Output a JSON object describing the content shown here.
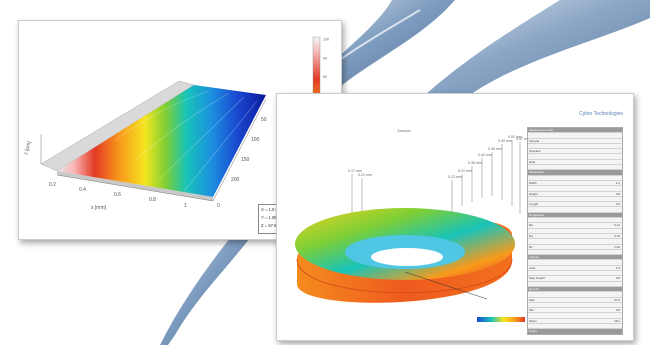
{
  "colors": {
    "swoosh_dark": "#5d7fa6",
    "swoosh_light": "#c7d5e3",
    "window_border": "#c9ccd1",
    "report_logo": "#5a7fb8"
  },
  "plot_window": {
    "colorbar_ticks": [
      "100",
      "90",
      "80",
      "70",
      "60",
      "50",
      "40",
      "30",
      "20",
      "10",
      "0"
    ],
    "x_ticks": [
      "0.2",
      "0.4",
      "0.6",
      "0.8",
      "1",
      "0"
    ],
    "depth_ticks": [
      "200",
      "150",
      "100",
      "50"
    ],
    "z_axis_label": "z [µm]",
    "x_axis_label": "x [mm]",
    "legend": [
      "X = 1.0 mm",
      "Y = 1.08 mm",
      "Z = 57.5 µm"
    ]
  },
  "report_window": {
    "logo_text": "Cyber Technologies",
    "caption": "Sample",
    "panel_rows": [
      {
        "label": "Measurement Info",
        "value": ""
      },
      {
        "label": "Sample",
        "value": ""
      },
      {
        "label": "Operator",
        "value": ""
      },
      {
        "label": "Date",
        "value": ""
      },
      {
        "label": "Parameters",
        "value": ""
      },
      {
        "label": "Width",
        "value": "1.2"
      },
      {
        "label": "Height",
        "value": "0.8"
      },
      {
        "label": "Length",
        "value": "3.5"
      },
      {
        "label": "Roughness",
        "value": ""
      },
      {
        "label": "Ra",
        "value": "0.12"
      },
      {
        "label": "Rq",
        "value": "0.15"
      },
      {
        "label": "Rz",
        "value": "1.02"
      },
      {
        "label": "Volume",
        "value": ""
      },
      {
        "label": "Area",
        "value": "2.4"
      },
      {
        "label": "Step Height",
        "value": "0.6"
      },
      {
        "label": "Results",
        "value": ""
      },
      {
        "label": "Max",
        "value": "57.5"
      },
      {
        "label": "Min",
        "value": "0.0"
      },
      {
        "label": "Mean",
        "value": "28.1"
      },
      {
        "label": "Notes",
        "value": ""
      }
    ],
    "callout_labels": [
      "0.17 mm",
      "0.21 mm",
      "0.23 mm",
      "0.31 mm",
      "0.38 mm",
      "0.42 mm",
      "0.45 mm",
      "0.49 mm",
      "0.52 mm",
      "0.57 mm"
    ]
  }
}
